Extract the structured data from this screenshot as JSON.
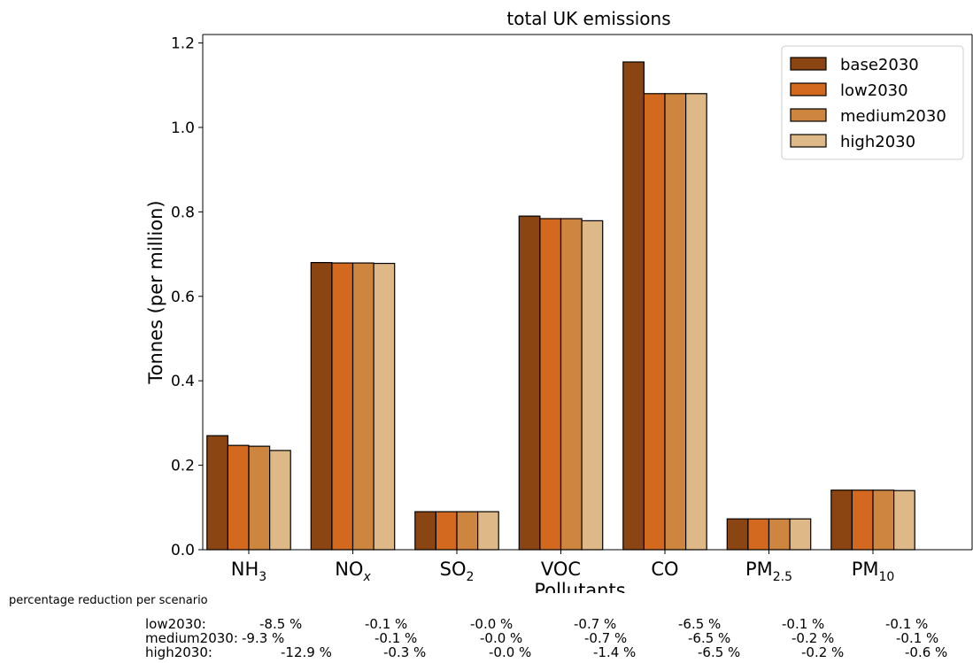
{
  "chart_data": {
    "type": "bar",
    "title": "total UK emissions",
    "xlabel": "Pollutants",
    "ylabel": "Tonnes (per million)",
    "ylim": [
      0,
      1.22
    ],
    "yticks": [
      "0.0",
      "0.2",
      "0.4",
      "0.6",
      "0.8",
      "1.0",
      "1.2"
    ],
    "legend_position": "top-right",
    "categories": [
      {
        "base": "NH",
        "sub": "3"
      },
      {
        "base": "NO",
        "sub": "x",
        "italic": true
      },
      {
        "base": "SO",
        "sub": "2"
      },
      {
        "base": "VOC",
        "sub": ""
      },
      {
        "base": "CO",
        "sub": ""
      },
      {
        "base": "PM",
        "sub": "2.5"
      },
      {
        "base": "PM",
        "sub": "10"
      }
    ],
    "series": [
      {
        "name": "base2030",
        "color": "#8B4513",
        "values": [
          0.27,
          0.68,
          0.09,
          0.79,
          1.155,
          0.073,
          0.141
        ]
      },
      {
        "name": "low2030",
        "color": "#D2691E",
        "values": [
          0.247,
          0.679,
          0.09,
          0.784,
          1.08,
          0.073,
          0.141
        ]
      },
      {
        "name": "medium2030",
        "color": "#CD853F",
        "values": [
          0.245,
          0.679,
          0.09,
          0.784,
          1.08,
          0.073,
          0.141
        ]
      },
      {
        "name": "high2030",
        "color": "#DEB887",
        "values": [
          0.235,
          0.678,
          0.09,
          0.779,
          1.08,
          0.073,
          0.14
        ]
      }
    ]
  },
  "footnote": {
    "caption": "percentage reduction per scenario",
    "rows": [
      {
        "label": "low2030:",
        "values": [
          "-8.5 %",
          "-0.1 %",
          "-0.0 %",
          "-0.7 %",
          "-6.5 %",
          "-0.1 %",
          "-0.1 %"
        ]
      },
      {
        "label": "medium2030:",
        "values": [
          "-9.3 %",
          "-0.1 %",
          "-0.0 %",
          "-0.7 %",
          "-6.5 %",
          "-0.2 %",
          "-0.1 %"
        ]
      },
      {
        "label": "high2030:",
        "values": [
          "-12.9 %",
          "-0.3 %",
          "-0.0 %",
          "-1.4 %",
          "-6.5 %",
          "-0.2 %",
          "-0.6 %"
        ]
      }
    ]
  }
}
